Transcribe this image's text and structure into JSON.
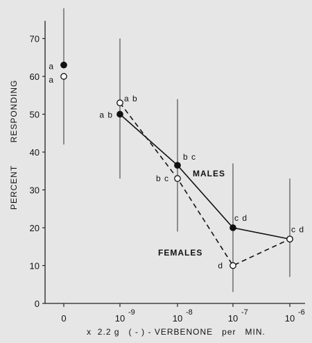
{
  "chart_data": {
    "type": "line",
    "xlabel": "x  2.2 g   ( - ) - VERBENONE   per   MIN.",
    "ylabel_left": "PERCENT",
    "ylabel_right": "RESPONDING",
    "ylim": [
      0,
      75
    ],
    "yticks": [
      0,
      10,
      20,
      30,
      40,
      50,
      60,
      70
    ],
    "categories": [
      {
        "label": "0",
        "exp": ""
      },
      {
        "label": "10",
        "exp": "-9"
      },
      {
        "label": "10",
        "exp": "-8"
      },
      {
        "label": "10",
        "exp": "-7"
      },
      {
        "label": "10",
        "exp": "-6"
      }
    ],
    "grid": false,
    "series": [
      {
        "name": "MALES",
        "marker": "filled",
        "line": "solid",
        "color": "#111111",
        "values": [
          63,
          50,
          36.5,
          20,
          17
        ],
        "labels": [
          "a",
          "ab",
          "bc",
          "cd",
          "cd"
        ],
        "error_low": [
          null,
          33,
          19,
          5,
          7
        ],
        "error_high": [
          78,
          70,
          54,
          37,
          33
        ],
        "connect_from": 1
      },
      {
        "name": "FEMALES",
        "marker": "open",
        "line": "dashed",
        "color": "#111111",
        "values": [
          60,
          53,
          33,
          10,
          17
        ],
        "labels": [
          "a",
          "ab",
          "bc",
          "d",
          null
        ],
        "error_low": [
          42,
          null,
          null,
          3,
          null
        ],
        "error_high": [
          null,
          null,
          null,
          null,
          null
        ],
        "connect_from": 1
      }
    ]
  }
}
